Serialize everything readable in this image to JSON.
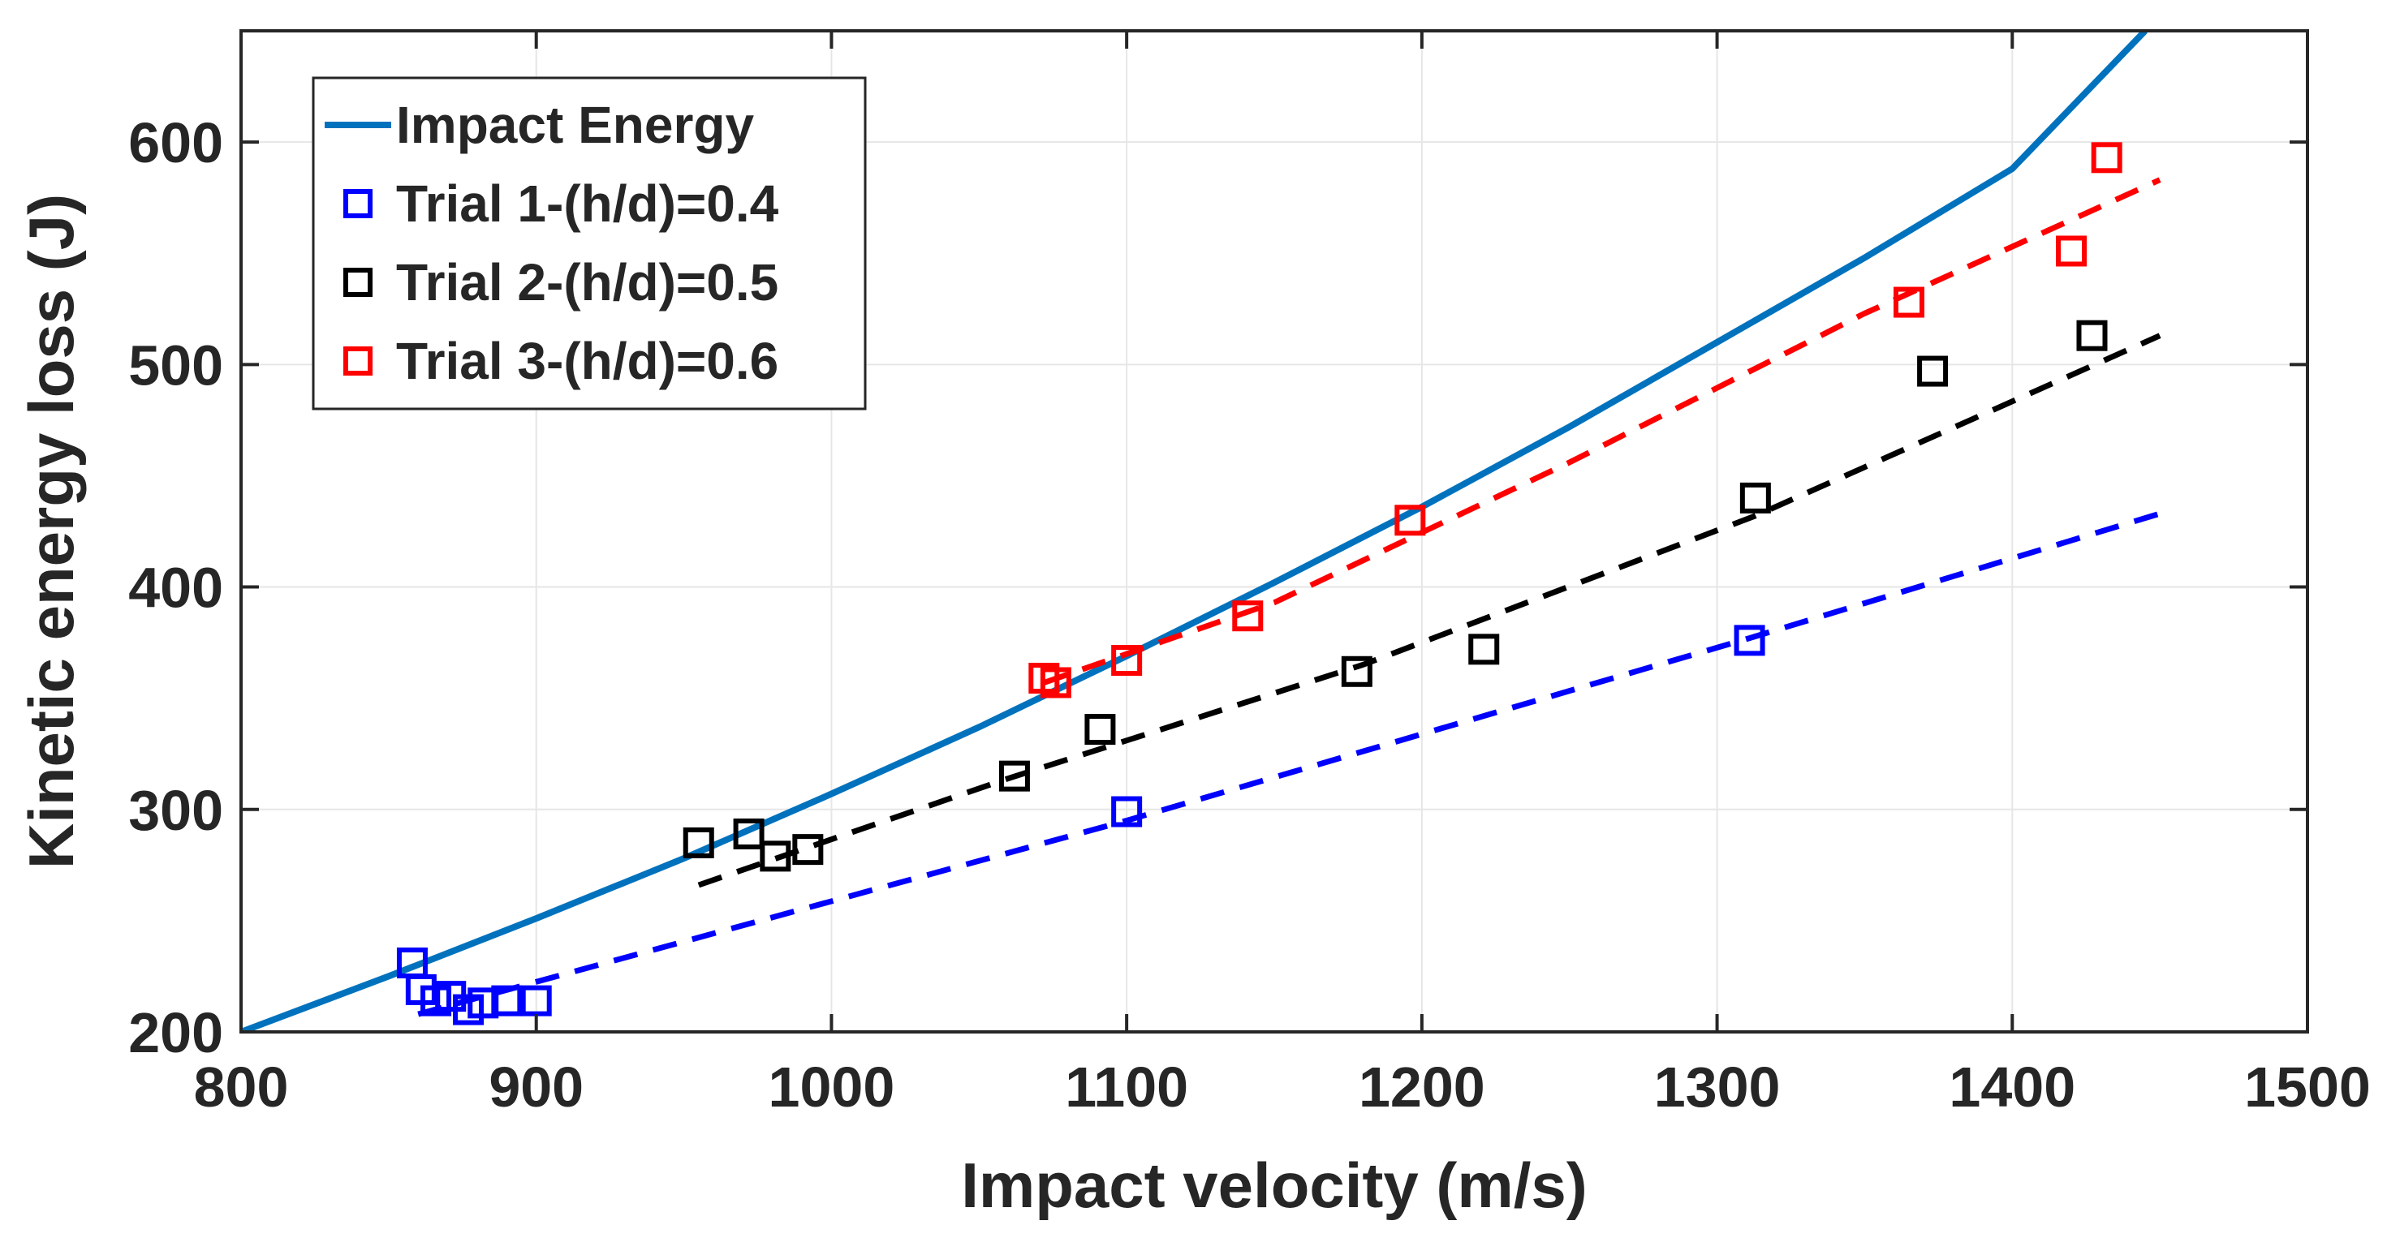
{
  "chart_data": {
    "type": "scatter",
    "title": "",
    "xlabel": "Impact velocity (m/s)",
    "ylabel": "Kinetic energy loss (J)",
    "xlim": [
      800,
      1500
    ],
    "ylim": [
      200,
      650
    ],
    "xticks": [
      800,
      900,
      1000,
      1100,
      1200,
      1300,
      1400,
      1500
    ],
    "yticks": [
      200,
      300,
      400,
      500,
      600
    ],
    "grid": true,
    "legend_position": "top-left",
    "line": {
      "name": "Impact Energy",
      "color": "#0072BD",
      "x": [
        800,
        850,
        900,
        950,
        1000,
        1050,
        1100,
        1150,
        1200,
        1250,
        1300,
        1350,
        1400,
        1445
      ],
      "y": [
        200,
        225,
        251,
        278,
        307,
        337,
        369,
        402,
        436,
        472,
        510,
        548,
        588,
        650
      ]
    },
    "series": [
      {
        "name": "Trial 1-(h/d)=0.4",
        "color": "#0000FF",
        "points": [
          [
            858,
            231
          ],
          [
            861,
            219
          ],
          [
            866,
            214
          ],
          [
            871,
            216
          ],
          [
            877,
            210
          ],
          [
            882,
            213
          ],
          [
            890,
            214
          ],
          [
            900,
            214
          ],
          [
            1100,
            299
          ],
          [
            1311,
            376
          ]
        ],
        "trend": {
          "x": [
            860,
            1100,
            1311,
            1450
          ],
          "y": [
            208,
            295,
            377,
            433
          ]
        }
      },
      {
        "name": "Trial 2-(h/d)=0.5",
        "color": "#000000",
        "points": [
          [
            955,
            285
          ],
          [
            972,
            289
          ],
          [
            981,
            279
          ],
          [
            992,
            282
          ],
          [
            1062,
            315
          ],
          [
            1091,
            336
          ],
          [
            1178,
            362
          ],
          [
            1221,
            372
          ],
          [
            1313,
            440
          ],
          [
            1373,
            497
          ],
          [
            1427,
            513
          ]
        ],
        "trend": {
          "x": [
            955,
            1060,
            1180,
            1313,
            1450
          ],
          "y": [
            266,
            314,
            365,
            432,
            513
          ]
        }
      },
      {
        "name": "Trial 3-(h/d)=0.6",
        "color": "#FF0000",
        "points": [
          [
            1072,
            359
          ],
          [
            1076,
            357
          ],
          [
            1100,
            367
          ],
          [
            1141,
            387
          ],
          [
            1196,
            430
          ],
          [
            1365,
            528
          ],
          [
            1420,
            551
          ],
          [
            1432,
            593
          ]
        ],
        "trend": {
          "x": [
            1072,
            1150,
            1250,
            1350,
            1450
          ],
          "y": [
            357,
            393,
            456,
            523,
            583
          ]
        }
      }
    ]
  }
}
